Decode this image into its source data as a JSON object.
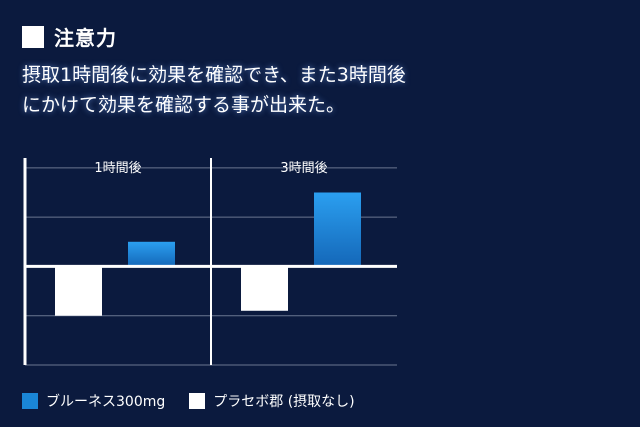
{
  "heading": {
    "title": "注意力"
  },
  "description": [
    "摂取1時間後に効果を確認でき、また3時間後",
    "にかけて効果を確認する事が出来た。"
  ],
  "colors": {
    "background": "#0b1a3e",
    "series_blue": "#1a86d6",
    "series_white": "#ffffff"
  },
  "chart_data": {
    "type": "bar",
    "title": "",
    "xlabel": "",
    "ylabel": "",
    "categories": [
      "1時間後",
      "3時間後"
    ],
    "series": [
      {
        "name": "ブルーネス300mg",
        "values": [
          0.5,
          1.5
        ]
      },
      {
        "name": "プラセボ郡 (摂取なし)",
        "values": [
          -1.0,
          -0.9
        ]
      }
    ],
    "ylim": [
      -2,
      2.2
    ],
    "grid": true,
    "legend_position": "bottom-left"
  }
}
